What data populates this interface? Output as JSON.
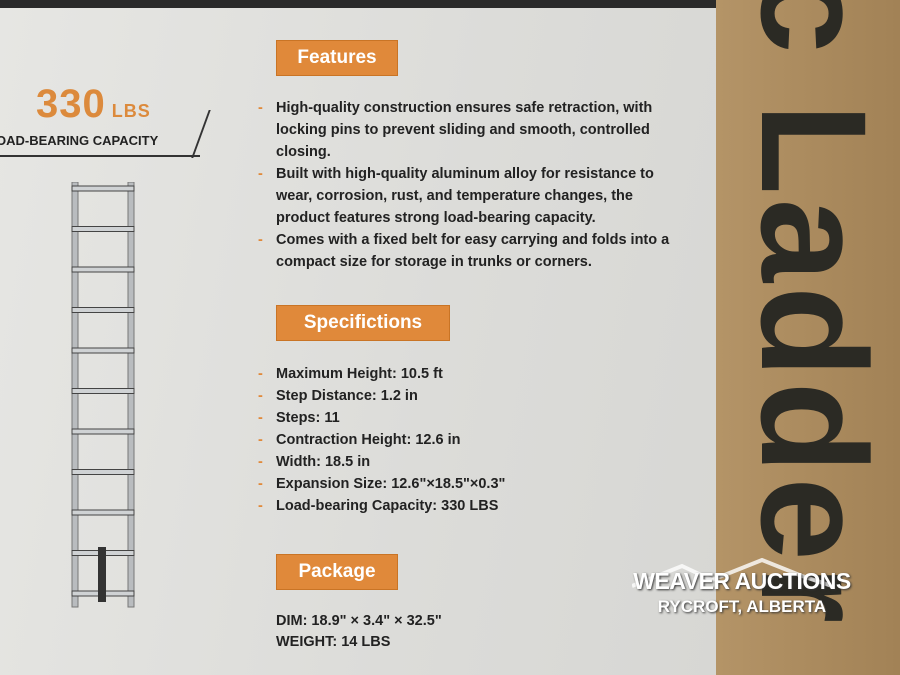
{
  "capacity": {
    "number": "330",
    "unit": "LBS",
    "label": "OAD-BEARING CAPACITY"
  },
  "features": {
    "heading": "Features",
    "items": [
      "High-quality construction ensures safe retraction, with locking pins to prevent sliding and smooth, controlled closing.",
      "Built with high-quality aluminum alloy for resistance to wear, corrosion, rust, and temperature changes, the product features strong load-bearing capacity.",
      "Comes with a fixed belt for easy carrying and folds into a compact size for storage in trunks or corners."
    ]
  },
  "specifications": {
    "heading": "Specifictions",
    "items": [
      "Maximum Height: 10.5 ft",
      "Step Distance: 1.2 in",
      "Steps: 11",
      "Contraction Height: 12.6 in",
      "Width: 18.5 in",
      "Expansion Size: 12.6\"×18.5\"×0.3\"",
      "Load-bearing Capacity: 330 LBS"
    ]
  },
  "package": {
    "heading": "Package",
    "dim": "DIM: 18.9\" × 3.4\" × 32.5\"",
    "weight": "WEIGHT: 14 LBS"
  },
  "box_print": "c Ladder",
  "watermark": {
    "line1": "WEAVER AUCTIONS",
    "line2": "RYCROFT, ALBERTA"
  },
  "colors": {
    "accent": "#e0893a",
    "panel": "#e2e2df",
    "cardboard": "#a8895c"
  }
}
